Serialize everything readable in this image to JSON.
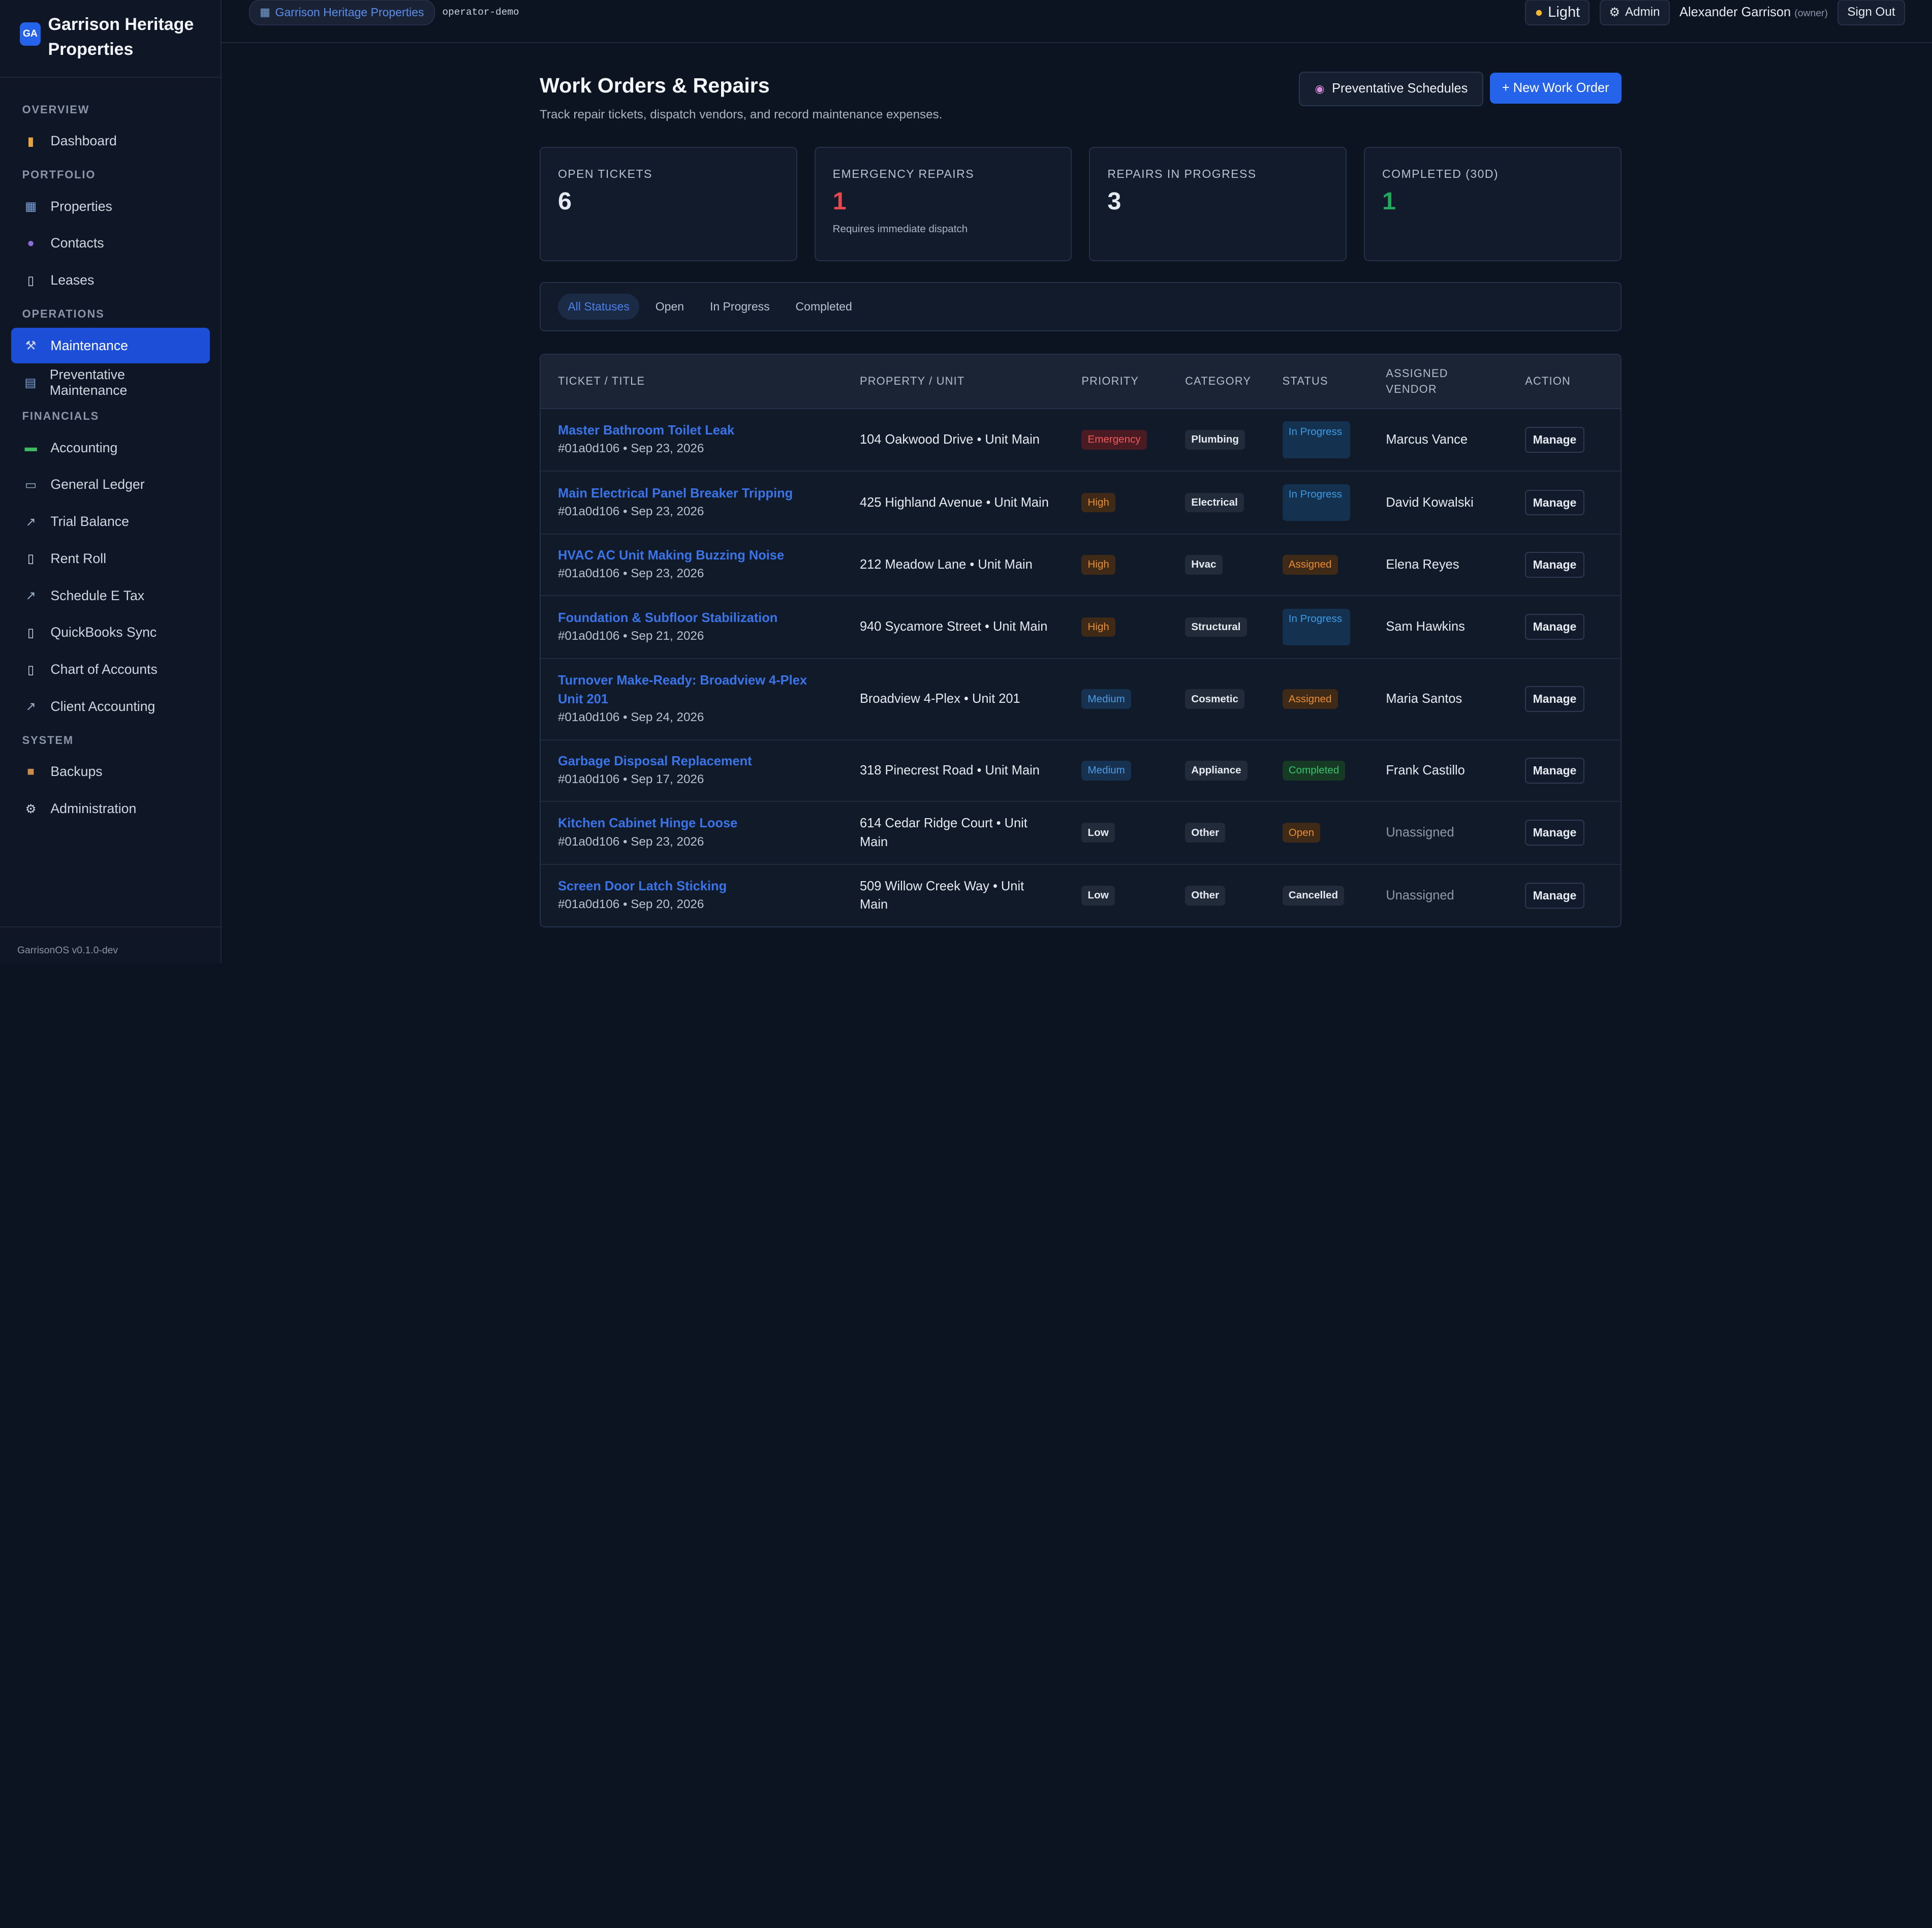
{
  "brand": {
    "logo": "GA",
    "name": "Garrison Heritage Properties"
  },
  "nav": {
    "overview": "OVERVIEW",
    "dashboard": "Dashboard",
    "portfolio": "PORTFOLIO",
    "properties": "Properties",
    "contacts": "Contacts",
    "leases": "Leases",
    "operations": "OPERATIONS",
    "maintenance": "Maintenance",
    "preventative": "Preventative Maintenance",
    "financials": "FINANCIALS",
    "accounting": "Accounting",
    "general_ledger": "General Ledger",
    "trial_balance": "Trial Balance",
    "rent_roll": "Rent Roll",
    "schedule_e": "Schedule E Tax",
    "quickbooks": "QuickBooks Sync",
    "chart_of_accounts": "Chart of Accounts",
    "client_accounting": "Client Accounting",
    "system": "SYSTEM",
    "backups": "Backups",
    "administration": "Administration"
  },
  "footer": {
    "version": "GarrisonOS v0.1.0-dev"
  },
  "topbar": {
    "org": "Garrison Heritage Properties",
    "tenant": "operator-demo",
    "theme": "Light",
    "admin": "Admin",
    "user_name": "Alexander Garrison",
    "user_role": "(owner)",
    "sign_out": "Sign Out"
  },
  "page": {
    "title": "Work Orders & Repairs",
    "subtitle": "Track repair tickets, dispatch vendors, and record maintenance expenses.",
    "preventative_btn": "Preventative Schedules",
    "new_btn": "+ New Work Order"
  },
  "stats": [
    {
      "label": "OPEN TICKETS",
      "value": "6",
      "note": ""
    },
    {
      "label": "EMERGENCY REPAIRS",
      "value": "1",
      "note": "Requires immediate dispatch"
    },
    {
      "label": "REPAIRS IN PROGRESS",
      "value": "3",
      "note": ""
    },
    {
      "label": "COMPLETED (30D)",
      "value": "1",
      "note": ""
    }
  ],
  "colors": {
    "emergency_value": "#e5484d",
    "completed_value": "#22a85a",
    "accent": "#2563eb"
  },
  "filters": [
    "All Statuses",
    "Open",
    "In Progress",
    "Completed"
  ],
  "table": {
    "headers": [
      "TICKET / TITLE",
      "PROPERTY / UNIT",
      "PRIORITY",
      "CATEGORY",
      "STATUS",
      "ASSIGNED VENDOR",
      "ACTION"
    ],
    "rows": [
      {
        "title": "Master Bathroom Toilet Leak",
        "meta": "#01a0d106 • Sep 23, 2026",
        "property": "104 Oakwood Drive • Unit Main",
        "priority": "Emergency",
        "category": "Plumbing",
        "status": "In Progress",
        "vendor": "Marcus Vance",
        "action": "Manage"
      },
      {
        "title": "Main Electrical Panel Breaker Tripping",
        "meta": "#01a0d106 • Sep 23, 2026",
        "property": "425 Highland Avenue • Unit Main",
        "priority": "High",
        "category": "Electrical",
        "status": "In Progress",
        "vendor": "David Kowalski",
        "action": "Manage"
      },
      {
        "title": "HVAC AC Unit Making Buzzing Noise",
        "meta": "#01a0d106 • Sep 23, 2026",
        "property": "212 Meadow Lane • Unit Main",
        "priority": "High",
        "category": "Hvac",
        "status": "Assigned",
        "vendor": "Elena Reyes",
        "action": "Manage"
      },
      {
        "title": "Foundation & Subfloor Stabilization",
        "meta": "#01a0d106 • Sep 21, 2026",
        "property": "940 Sycamore Street • Unit Main",
        "priority": "High",
        "category": "Structural",
        "status": "In Progress",
        "vendor": "Sam Hawkins",
        "action": "Manage"
      },
      {
        "title": "Turnover Make-Ready: Broadview 4-Plex Unit 201",
        "meta": "#01a0d106 • Sep 24, 2026",
        "property": "Broadview 4-Plex • Unit 201",
        "priority": "Medium",
        "category": "Cosmetic",
        "status": "Assigned",
        "vendor": "Maria Santos",
        "action": "Manage"
      },
      {
        "title": "Garbage Disposal Replacement",
        "meta": "#01a0d106 • Sep 17, 2026",
        "property": "318 Pinecrest Road • Unit Main",
        "priority": "Medium",
        "category": "Appliance",
        "status": "Completed",
        "vendor": "Frank Castillo",
        "action": "Manage"
      },
      {
        "title": "Kitchen Cabinet Hinge Loose",
        "meta": "#01a0d106 • Sep 23, 2026",
        "property": "614 Cedar Ridge Court • Unit Main",
        "priority": "Low",
        "category": "Other",
        "status": "Open",
        "vendor": "Unassigned",
        "action": "Manage"
      },
      {
        "title": "Screen Door Latch Sticking",
        "meta": "#01a0d106 • Sep 20, 2026",
        "property": "509 Willow Creek Way • Unit Main",
        "priority": "Low",
        "category": "Other",
        "status": "Cancelled",
        "vendor": "Unassigned",
        "action": "Manage"
      }
    ]
  }
}
